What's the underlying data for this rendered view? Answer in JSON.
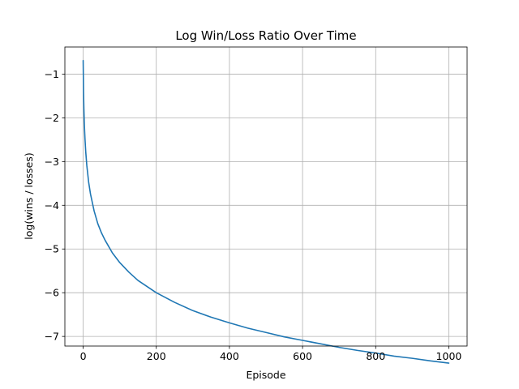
{
  "chart_data": {
    "type": "line",
    "title": "Log Win/Loss Ratio Over Time",
    "xlabel": "Episode",
    "ylabel": "log(wins / losses)",
    "xlim": [
      -50,
      1050
    ],
    "ylim": [
      -7.22,
      -0.38
    ],
    "xticks": [
      0,
      200,
      400,
      600,
      800,
      1000
    ],
    "yticks": [
      -1,
      -2,
      -3,
      -4,
      -5,
      -6,
      -7
    ],
    "xtick_labels": [
      "0",
      "200",
      "400",
      "600",
      "800",
      "1000"
    ],
    "ytick_labels": [
      "−1",
      "−2",
      "−3",
      "−4",
      "−5",
      "−6",
      "−7"
    ],
    "grid": true,
    "series": [
      {
        "color": "#1f77b4",
        "x": [
          0,
          1,
          2,
          3,
          4,
          5,
          7,
          10,
          15,
          20,
          30,
          40,
          50,
          60,
          80,
          100,
          125,
          150,
          200,
          250,
          300,
          350,
          400,
          450,
          500,
          550,
          600,
          650,
          700,
          750,
          800,
          850,
          900,
          950,
          1000
        ],
        "y": [
          -0.69,
          -1.39,
          -1.79,
          -2.08,
          -2.3,
          -2.48,
          -2.77,
          -3.09,
          -3.47,
          -3.74,
          -4.13,
          -4.42,
          -4.63,
          -4.8,
          -5.09,
          -5.31,
          -5.53,
          -5.72,
          -6.0,
          -6.22,
          -6.41,
          -6.56,
          -6.69,
          -6.81,
          -6.91,
          -7.01,
          -7.09,
          -7.17,
          -7.25,
          -7.32,
          -7.38,
          -7.45,
          -7.5,
          -7.56,
          -7.61
        ]
      }
    ]
  }
}
